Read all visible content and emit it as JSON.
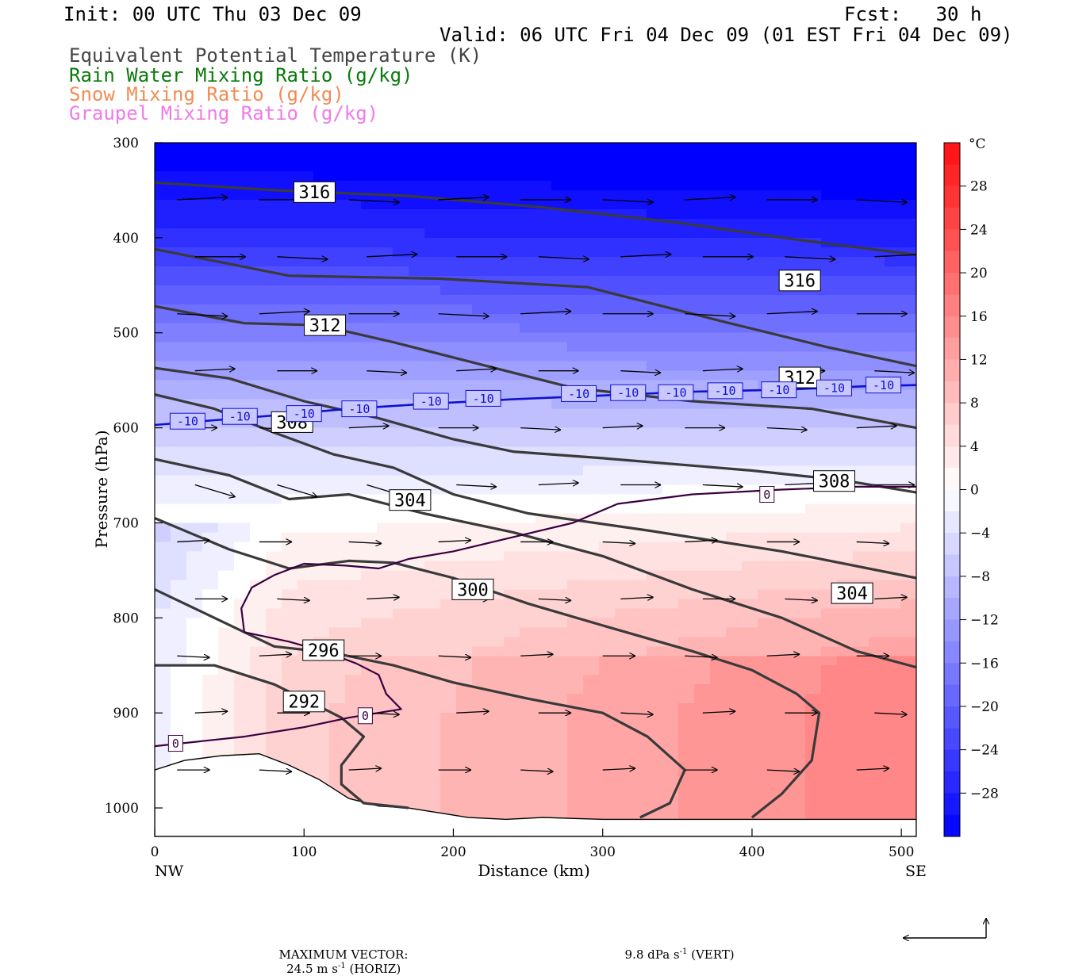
{
  "header": {
    "init": "Init: 00 UTC Thu 03 Dec 09",
    "fcst": "Fcst:   30 h",
    "valid": "Valid: 06 UTC Fri 04 Dec 09 (01 EST Fri 04 Dec 09)",
    "fields": [
      {
        "text": "Equivalent Potential Temperature (K)",
        "color": "#444444"
      },
      {
        "text": "Rain Water Mixing Ratio (g/kg)",
        "color": "#0a7a0a"
      },
      {
        "text": "Snow Mixing Ratio (g/kg)",
        "color": "#f08c55"
      },
      {
        "text": "Graupel Mixing Ratio (g/kg)",
        "color": "#f07ae6"
      }
    ]
  },
  "chart_data": {
    "type": "cross-section",
    "xlabel": "Distance (km)",
    "ylabel": "Pressure (hPa)",
    "xlim": [
      0,
      510
    ],
    "ylim": [
      1030,
      300
    ],
    "xticks": [
      0,
      100,
      200,
      300,
      400,
      500
    ],
    "yticks": [
      300,
      400,
      500,
      600,
      700,
      800,
      900,
      1000
    ],
    "endpoint_labels": {
      "left": "NW",
      "right": "SE"
    },
    "colorbar": {
      "unit": "°C",
      "min": -32,
      "max": 32,
      "step": 2,
      "tick_labels": [
        28,
        24,
        20,
        16,
        12,
        8,
        4,
        0,
        -4,
        -8,
        -12,
        -16,
        -20,
        -24,
        -28
      ]
    },
    "theta_e_contours": [
      {
        "value": 316,
        "points": [
          [
            0,
            342
          ],
          [
            80,
            350
          ],
          [
            170,
            356
          ],
          [
            260,
            368
          ],
          [
            350,
            384
          ],
          [
            430,
            402
          ],
          [
            510,
            418
          ]
        ]
      },
      {
        "value": 316,
        "points": [
          [
            0,
            412
          ],
          [
            90,
            440
          ],
          [
            190,
            443
          ],
          [
            290,
            452
          ],
          [
            380,
            488
          ],
          [
            450,
            515
          ],
          [
            510,
            535
          ]
        ]
      },
      {
        "value": 312,
        "points": [
          [
            0,
            472
          ],
          [
            60,
            490
          ],
          [
            110,
            492
          ],
          [
            160,
            510
          ],
          [
            210,
            530
          ],
          [
            280,
            558
          ],
          [
            360,
            572
          ],
          [
            440,
            580
          ],
          [
            510,
            600
          ]
        ]
      },
      {
        "value": 312,
        "points": [
          [
            0,
            537
          ],
          [
            50,
            548
          ],
          [
            100,
            572
          ],
          [
            150,
            590
          ],
          [
            200,
            612
          ],
          [
            240,
            625
          ],
          [
            300,
            632
          ],
          [
            400,
            645
          ],
          [
            460,
            655
          ],
          [
            510,
            668
          ]
        ]
      },
      {
        "value": 308,
        "points": [
          [
            0,
            565
          ],
          [
            40,
            580
          ],
          [
            80,
            605
          ],
          [
            120,
            628
          ],
          [
            160,
            642
          ],
          [
            200,
            670
          ],
          [
            250,
            690
          ],
          [
            330,
            708
          ],
          [
            420,
            730
          ],
          [
            510,
            758
          ]
        ]
      },
      {
        "value": 308,
        "points": [
          [
            0,
            633
          ],
          [
            50,
            650
          ],
          [
            90,
            675
          ],
          [
            130,
            670
          ],
          [
            180,
            690
          ],
          [
            240,
            710
          ],
          [
            300,
            735
          ],
          [
            360,
            770
          ],
          [
            420,
            800
          ],
          [
            470,
            835
          ],
          [
            510,
            852
          ]
        ]
      },
      {
        "value": 304,
        "points": [
          [
            0,
            695
          ],
          [
            50,
            728
          ],
          [
            90,
            748
          ],
          [
            130,
            740
          ],
          [
            160,
            742
          ],
          [
            200,
            758
          ],
          [
            250,
            785
          ],
          [
            300,
            808
          ],
          [
            360,
            835
          ],
          [
            400,
            855
          ],
          [
            430,
            880
          ],
          [
            445,
            900
          ],
          [
            440,
            950
          ],
          [
            420,
            985
          ],
          [
            400,
            1010
          ]
        ]
      },
      {
        "value": 300,
        "points": [
          [
            0,
            770
          ],
          [
            40,
            800
          ],
          [
            80,
            830
          ],
          [
            120,
            837
          ],
          [
            160,
            850
          ],
          [
            200,
            868
          ],
          [
            250,
            885
          ],
          [
            300,
            900
          ],
          [
            330,
            925
          ],
          [
            355,
            960
          ],
          [
            345,
            995
          ],
          [
            325,
            1010
          ]
        ]
      },
      {
        "value": 296,
        "points": [
          [
            0,
            850
          ],
          [
            40,
            850
          ],
          [
            80,
            870
          ],
          [
            110,
            893
          ],
          [
            125,
            905
          ],
          [
            140,
            925
          ],
          [
            125,
            955
          ],
          [
            125,
            975
          ],
          [
            140,
            995
          ],
          [
            170,
            1000
          ]
        ]
      }
    ],
    "isotherms": [
      {
        "value": -10,
        "points": [
          [
            0,
            597
          ],
          [
            40,
            592
          ],
          [
            80,
            587
          ],
          [
            130,
            580
          ],
          [
            180,
            575
          ],
          [
            240,
            570
          ],
          [
            300,
            566
          ],
          [
            360,
            562
          ],
          [
            420,
            560
          ],
          [
            480,
            556
          ],
          [
            510,
            555
          ]
        ]
      },
      {
        "value": 0,
        "points": [
          [
            0,
            935
          ],
          [
            60,
            925
          ],
          [
            100,
            915
          ],
          [
            130,
            905
          ],
          [
            165,
            896
          ],
          [
            155,
            880
          ],
          [
            150,
            860
          ],
          [
            135,
            848
          ],
          [
            115,
            836
          ],
          [
            90,
            825
          ],
          [
            60,
            815
          ],
          [
            58,
            790
          ],
          [
            65,
            768
          ],
          [
            80,
            755
          ],
          [
            100,
            743
          ],
          [
            128,
            745
          ],
          [
            150,
            748
          ],
          [
            170,
            738
          ],
          [
            200,
            730
          ],
          [
            240,
            715
          ],
          [
            280,
            700
          ],
          [
            310,
            680
          ],
          [
            360,
            670
          ],
          [
            420,
            665
          ],
          [
            470,
            662
          ],
          [
            510,
            662
          ]
        ]
      }
    ],
    "contour_labels": [
      {
        "text": "316",
        "x": 107,
        "p": 352
      },
      {
        "text": "316",
        "x": 432,
        "p": 445
      },
      {
        "text": "312",
        "x": 114,
        "p": 492
      },
      {
        "text": "312",
        "x": 432,
        "p": 547
      },
      {
        "text": "308",
        "x": 92,
        "p": 594
      },
      {
        "text": "308",
        "x": 455,
        "p": 656
      },
      {
        "text": "304",
        "x": 171,
        "p": 676
      },
      {
        "text": "304",
        "x": 467,
        "p": 774
      },
      {
        "text": "300",
        "x": 213,
        "p": 770
      },
      {
        "text": "296",
        "x": 113,
        "p": 834
      },
      {
        "text": "292",
        "x": 100,
        "p": 888
      },
      {
        "text": "-10",
        "x": 22,
        "p": 593
      },
      {
        "text": "-10",
        "x": 57,
        "p": 588
      },
      {
        "text": "-10",
        "x": 100,
        "p": 585
      },
      {
        "text": "-10",
        "x": 137,
        "p": 580
      },
      {
        "text": "-10",
        "x": 185,
        "p": 572
      },
      {
        "text": "-10",
        "x": 220,
        "p": 569
      },
      {
        "text": "-10",
        "x": 284,
        "p": 564
      },
      {
        "text": "-10",
        "x": 317,
        "p": 563
      },
      {
        "text": "-10",
        "x": 349,
        "p": 563
      },
      {
        "text": "-10",
        "x": 382,
        "p": 561
      },
      {
        "text": "-10",
        "x": 418,
        "p": 560
      },
      {
        "text": "-10",
        "x": 455,
        "p": 558
      },
      {
        "text": "-10",
        "x": 488,
        "p": 555
      },
      {
        "text": "0",
        "x": 14,
        "p": 932
      },
      {
        "text": "0",
        "x": 141,
        "p": 903
      },
      {
        "text": "0",
        "x": 410,
        "p": 670
      }
    ],
    "terrain_profile": [
      [
        0,
        960
      ],
      [
        20,
        950
      ],
      [
        45,
        945
      ],
      [
        70,
        943
      ],
      [
        90,
        955
      ],
      [
        110,
        970
      ],
      [
        130,
        990
      ],
      [
        150,
        998
      ],
      [
        170,
        1000
      ],
      [
        190,
        1005
      ],
      [
        210,
        1010
      ],
      [
        235,
        1012
      ],
      [
        260,
        1010
      ],
      [
        300,
        1012
      ],
      [
        360,
        1012
      ],
      [
        430,
        1012
      ],
      [
        510,
        1012
      ]
    ],
    "wind_vector_rows_p": [
      360,
      420,
      480,
      540,
      600,
      660,
      720,
      780,
      840,
      900,
      960
    ],
    "max_vector": {
      "text_prefix": "MAXIMUM VECTOR:",
      "horiz": "24.5 m s",
      "horiz_suffix": " (HORIZ)",
      "vert": "9.8 dPa s",
      "vert_suffix": " (VERT)",
      "exponent": "-1"
    }
  }
}
